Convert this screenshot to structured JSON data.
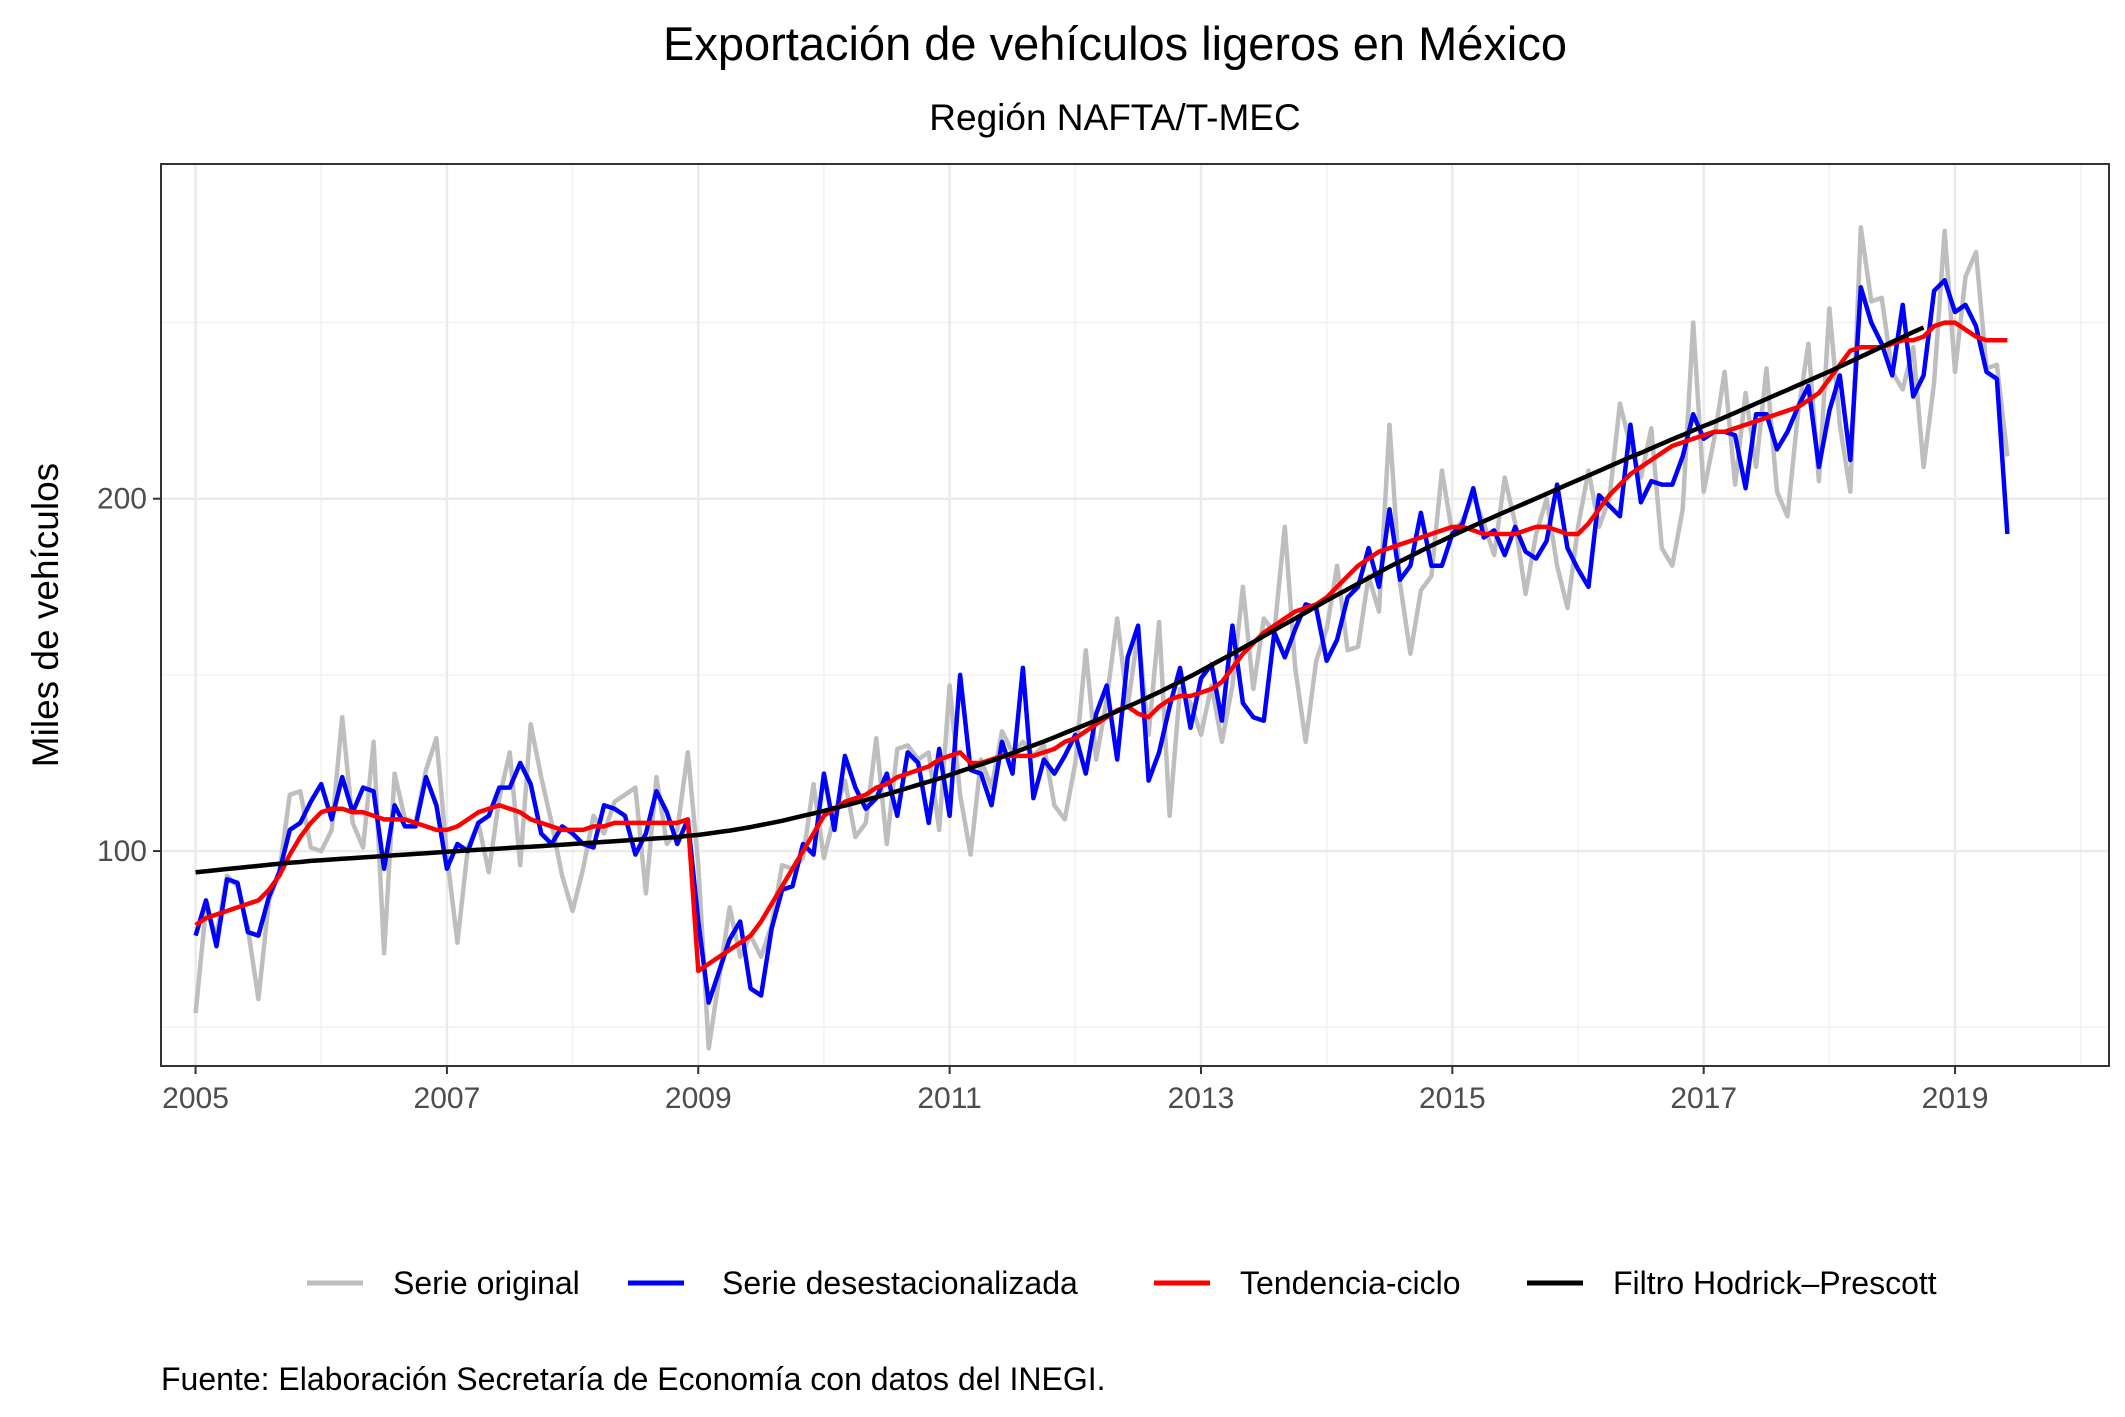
{
  "chart_data": {
    "type": "line",
    "title": "Exportación de vehículos ligeros en México",
    "subtitle": "Región NAFTA/T-MEC",
    "xlabel": "",
    "ylabel": "Miles de vehículos",
    "caption": "Fuente: Elaboración Secretaría de Economía con datos del INEGI.",
    "xlim": [
      2004.725,
      2020.225
    ],
    "ylim": [
      39,
      295
    ],
    "x_ticks": [
      "2005",
      "2007",
      "2009",
      "2011",
      "2013",
      "2015",
      "2017",
      "2019"
    ],
    "y_ticks": [
      "100",
      "200"
    ],
    "grid": true,
    "legend_position": "bottom",
    "x_start": 2005.0,
    "x_step": 0.0833333,
    "series": [
      {
        "name": "Serie original",
        "color": "#bebebe",
        "values": [
          54,
          84,
          76,
          93,
          90,
          78,
          58,
          86,
          94,
          116,
          117,
          101,
          100,
          106,
          138,
          108,
          101,
          131,
          71,
          122,
          109,
          108,
          123,
          132,
          99,
          74,
          101,
          108,
          94,
          115,
          128,
          96,
          136,
          121,
          108,
          93,
          83,
          95,
          110,
          105,
          114,
          116,
          118,
          88,
          121,
          102,
          106,
          128,
          96,
          44,
          64,
          84,
          70,
          76,
          70,
          79,
          96,
          95,
          98,
          119,
          98,
          110,
          120,
          104,
          108,
          132,
          102,
          129,
          130,
          126,
          128,
          106,
          147,
          116,
          99,
          126,
          118,
          134,
          128,
          131,
          127,
          130,
          113,
          109,
          125,
          157,
          126,
          143,
          166,
          141,
          162,
          133,
          165,
          110,
          146,
          142,
          133,
          147,
          131,
          147,
          175,
          146,
          166,
          162,
          192,
          152,
          131,
          154,
          163,
          181,
          157,
          158,
          178,
          168,
          221,
          176,
          156,
          174,
          178,
          208,
          190,
          194,
          201,
          193,
          184,
          206,
          193,
          173,
          190,
          200,
          181,
          169,
          192,
          208,
          192,
          200,
          227,
          215,
          206,
          220,
          186,
          181,
          197,
          250,
          202,
          217,
          236,
          204,
          230,
          209,
          237,
          202,
          195,
          224,
          244,
          205,
          254,
          221,
          202,
          277,
          256,
          257,
          236,
          231,
          243,
          209,
          233,
          276,
          236,
          263,
          270,
          237,
          238,
          212
        ]
      },
      {
        "name": "Serie desestacionalizada",
        "color": "#0000ff",
        "values": [
          76,
          86,
          73,
          92,
          91,
          77,
          76,
          87,
          94,
          106,
          108,
          114,
          119,
          109,
          121,
          111,
          118,
          117,
          95,
          113,
          107,
          107,
          121,
          113,
          95,
          102,
          100,
          108,
          110,
          118,
          118,
          125,
          119,
          105,
          102,
          107,
          105,
          102,
          101,
          113,
          112,
          110,
          99,
          105,
          117,
          111,
          102,
          109,
          80,
          57,
          66,
          75,
          80,
          61,
          59,
          78,
          89,
          90,
          102,
          99,
          122,
          106,
          127,
          118,
          112,
          115,
          122,
          110,
          128,
          125,
          108,
          129,
          110,
          150,
          123,
          122,
          113,
          131,
          122,
          152,
          115,
          126,
          122,
          127,
          133,
          122,
          139,
          147,
          126,
          155,
          164,
          120,
          128,
          141,
          152,
          135,
          149,
          153,
          137,
          164,
          142,
          138,
          137,
          162,
          155,
          163,
          170,
          169,
          154,
          160,
          172,
          175,
          186,
          175,
          197,
          177,
          181,
          196,
          181,
          181,
          190,
          193,
          203,
          189,
          191,
          184,
          192,
          185,
          183,
          188,
          204,
          186,
          180,
          175,
          201,
          198,
          195,
          221,
          199,
          205,
          204,
          204,
          212,
          224,
          217,
          219,
          219,
          218,
          203,
          224,
          224,
          214,
          219,
          226,
          232,
          209,
          225,
          235,
          211,
          260,
          250,
          244,
          235,
          255,
          229,
          235,
          259,
          262,
          253,
          255,
          249,
          236,
          234,
          190
        ]
      },
      {
        "name": "Tendencia-ciclo",
        "color": "#ff0000",
        "values": [
          79,
          81,
          82,
          83,
          84,
          85,
          86,
          89,
          93,
          99,
          104,
          108,
          111,
          112,
          112,
          111,
          111,
          110,
          109,
          109,
          109,
          108,
          107,
          106,
          106,
          107,
          109,
          111,
          112,
          113,
          112,
          111,
          109,
          108,
          107,
          106,
          106,
          106,
          107,
          107,
          108,
          108,
          108,
          108,
          108,
          108,
          108,
          109,
          66,
          68,
          70,
          72,
          74,
          76,
          80,
          85,
          90,
          95,
          100,
          105,
          110,
          112,
          114,
          115,
          116,
          118,
          119,
          121,
          122,
          123,
          124,
          126,
          127,
          128,
          125,
          125,
          126,
          127,
          127,
          127,
          127,
          128,
          129,
          131,
          132,
          134,
          136,
          138,
          140,
          141,
          139,
          138,
          141,
          143,
          144,
          144,
          145,
          146,
          148,
          152,
          156,
          159,
          162,
          164,
          166,
          168,
          169,
          170,
          172,
          175,
          178,
          181,
          183,
          185,
          186,
          187,
          188,
          189,
          190,
          191,
          192,
          192,
          191,
          190,
          190,
          190,
          190,
          191,
          192,
          192,
          191,
          190,
          190,
          193,
          197,
          201,
          204,
          207,
          209,
          211,
          213,
          215,
          216,
          217,
          218,
          219,
          219,
          220,
          221,
          222,
          223,
          224,
          225,
          226,
          228,
          230,
          234,
          238,
          242,
          243,
          243,
          243,
          244,
          245,
          245,
          246,
          249,
          250,
          250,
          248,
          246,
          245,
          245,
          245
        ]
      },
      {
        "name": "Filtro Hodrick–Prescott",
        "color": "#000000",
        "values": [
          94,
          94.3,
          94.6,
          94.9,
          95.2,
          95.5,
          95.8,
          96.1,
          96.4,
          96.7,
          96.9,
          97.2,
          97.4,
          97.6,
          97.8,
          98,
          98.2,
          98.4,
          98.6,
          98.8,
          99,
          99.2,
          99.4,
          99.6,
          99.8,
          100,
          100.2,
          100.4,
          100.5,
          100.7,
          100.9,
          101.1,
          101.2,
          101.4,
          101.6,
          101.8,
          102,
          102.2,
          102.4,
          102.6,
          102.8,
          103,
          103.2,
          103.4,
          103.6,
          103.8,
          104,
          104.3,
          104.6,
          105,
          105.4,
          105.8,
          106.3,
          106.8,
          107.4,
          108,
          108.6,
          109.3,
          110,
          110.7,
          111.4,
          112.2,
          112.9,
          113.7,
          114.5,
          115.3,
          116.1,
          117,
          117.9,
          118.8,
          119.7,
          120.6,
          121.6,
          122.6,
          123.6,
          124.6,
          125.6,
          126.7,
          127.8,
          128.9,
          130,
          131.1,
          132.3,
          133.5,
          134.7,
          135.9,
          137.1,
          138.4,
          139.7,
          141,
          142.3,
          143.7,
          145.1,
          146.6,
          148.1,
          149.6,
          151.2,
          152.8,
          154.4,
          156,
          157.7,
          159.3,
          161,
          162.7,
          164.4,
          166,
          167.7,
          169.4,
          171.1,
          172.7,
          174.3,
          175.9,
          177.5,
          179.1,
          180.7,
          182.2,
          183.7,
          185.2,
          186.7,
          188.1,
          189.5,
          190.9,
          192.3,
          193.6,
          194.9,
          196.2,
          197.5,
          198.8,
          200.1,
          201.4,
          202.7,
          204,
          205.3,
          206.6,
          207.9,
          209.2,
          210.5,
          211.8,
          213,
          214.3,
          215.6,
          216.9,
          218.1,
          219.4,
          220.6,
          221.8,
          223.1,
          224.4,
          225.7,
          227,
          228.3,
          229.6,
          230.9,
          232.2,
          233.5,
          234.8,
          236.1,
          237.5,
          238.9,
          240.3,
          241.7,
          243.1,
          244.5,
          245.9,
          247.3,
          248.6
        ]
      }
    ]
  }
}
